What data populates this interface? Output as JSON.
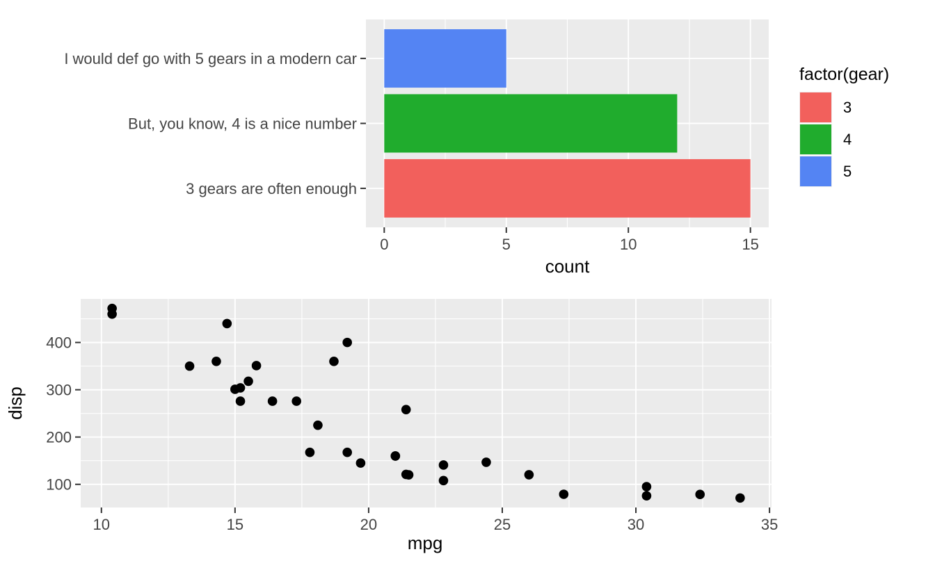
{
  "figure": {
    "background": "#FFFFFF"
  },
  "style": {
    "panel_bg": "#EBEBEB",
    "grid_major": "#FFFFFF",
    "grid_minor": "#FFFFFF",
    "grid_major_width": 1.9,
    "grid_minor_width": 1.1,
    "tick_mark_color": "#333333",
    "tick_text_color": "#444444",
    "title_text_color": "#000000",
    "point_color": "#000000",
    "legend_key_frame": "#EDEDED"
  },
  "chart_data": [
    {
      "type": "bar",
      "orientation": "horizontal",
      "title": "",
      "xlabel": "count",
      "ylabel": "",
      "xlim": [
        -0.75,
        15.75
      ],
      "x_ticks": [
        0,
        5,
        10,
        15
      ],
      "x_minor_ticks": [
        2.5,
        7.5,
        12.5
      ],
      "grid": true,
      "bars": [
        {
          "label": "3 gears are often enough",
          "gear": "3",
          "value": 15,
          "color": "#F2605C"
        },
        {
          "label": "But, you know, 4 is a nice number",
          "gear": "4",
          "value": 12,
          "color": "#20AC2D"
        },
        {
          "label": "I would def go with 5 gears in a modern car",
          "gear": "5",
          "value": 5,
          "color": "#5484F3"
        }
      ],
      "legend": {
        "title": "factor(gear)",
        "position": "right",
        "items": [
          {
            "label": "3",
            "color": "#F2605C"
          },
          {
            "label": "4",
            "color": "#20AC2D"
          },
          {
            "label": "5",
            "color": "#5484F3"
          }
        ]
      }
    },
    {
      "type": "scatter",
      "title": "",
      "xlabel": "mpg",
      "ylabel": "disp",
      "xlim": [
        9.225,
        35.075
      ],
      "ylim": [
        51.06,
        492.05
      ],
      "x_ticks": [
        10,
        15,
        20,
        25,
        30,
        35
      ],
      "x_minor_ticks": [
        12.5,
        17.5,
        22.5,
        27.5,
        32.5
      ],
      "y_ticks": [
        100,
        200,
        300,
        400
      ],
      "y_minor_ticks": [
        150,
        250,
        350,
        450
      ],
      "grid": true,
      "points": [
        [
          21.0,
          160.0
        ],
        [
          21.0,
          160.0
        ],
        [
          22.8,
          108.0
        ],
        [
          21.4,
          258.0
        ],
        [
          18.7,
          360.0
        ],
        [
          18.1,
          225.0
        ],
        [
          14.3,
          360.0
        ],
        [
          24.4,
          146.7
        ],
        [
          22.8,
          140.8
        ],
        [
          19.2,
          167.6
        ],
        [
          17.8,
          167.6
        ],
        [
          16.4,
          275.8
        ],
        [
          17.3,
          275.8
        ],
        [
          15.2,
          275.8
        ],
        [
          10.4,
          472.0
        ],
        [
          10.4,
          460.0
        ],
        [
          14.7,
          440.0
        ],
        [
          32.4,
          78.7
        ],
        [
          30.4,
          75.7
        ],
        [
          33.9,
          71.1
        ],
        [
          21.5,
          120.1
        ],
        [
          15.5,
          318.0
        ],
        [
          15.2,
          304.0
        ],
        [
          13.3,
          350.0
        ],
        [
          19.2,
          400.0
        ],
        [
          27.3,
          79.0
        ],
        [
          26.0,
          120.3
        ],
        [
          30.4,
          95.1
        ],
        [
          15.8,
          351.0
        ],
        [
          19.7,
          145.0
        ],
        [
          15.0,
          301.0
        ],
        [
          21.4,
          121.0
        ]
      ]
    }
  ]
}
